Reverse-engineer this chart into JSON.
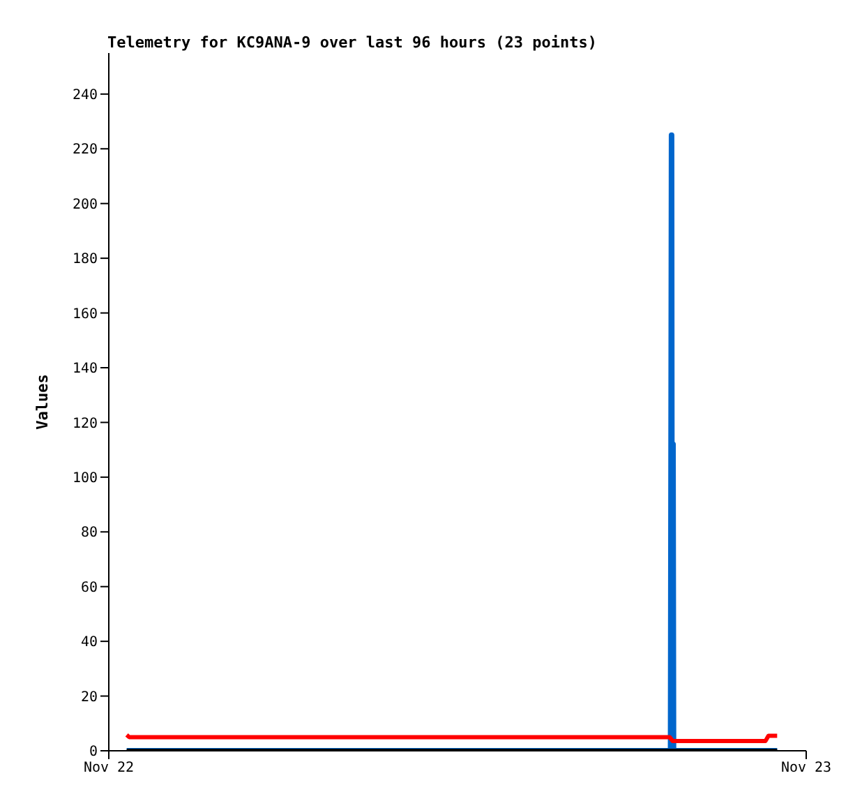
{
  "chart_data": {
    "type": "line",
    "title": "Telemetry for KC9ANA-9 over last 96 hours (23 points)",
    "ylabel": "Values",
    "xlim": [
      "--11-22",
      "--11-23"
    ],
    "xticks": [
      {
        "value": "--11-22",
        "label": "Nov 22"
      },
      {
        "value": "--11-23",
        "label": "Nov 23"
      }
    ],
    "ylim": [
      0,
      255
    ],
    "yticks": [
      0,
      20,
      40,
      60,
      80,
      100,
      120,
      140,
      160,
      180,
      200,
      220,
      240
    ],
    "grid": false,
    "legend": false,
    "marker": "none",
    "line_style": "solid",
    "series": [
      {
        "color": "#0066cc",
        "x": [
          "--11-22T00:37",
          "--11-22T19:20",
          "--11-22T19:22",
          "--11-22T19:23",
          "--11-22T19:25",
          "--11-22T19:26",
          "--11-22T23:00"
        ],
        "values": [
          0,
          0,
          225,
          0,
          112,
          0,
          0
        ]
      },
      {
        "color": "#000000",
        "x": [
          "--11-22T00:37",
          "--11-22T23:00"
        ],
        "values": [
          0,
          0
        ]
      },
      {
        "color": "#ff0000",
        "x": [
          "--11-22T00:37",
          "--11-22T00:42",
          "--11-22T19:18",
          "--11-22T19:24",
          "--11-22T22:36",
          "--11-22T22:42",
          "--11-22T23:00"
        ],
        "values": [
          5.8,
          5,
          5,
          3.6,
          3.6,
          5.5,
          5.5
        ]
      }
    ]
  }
}
